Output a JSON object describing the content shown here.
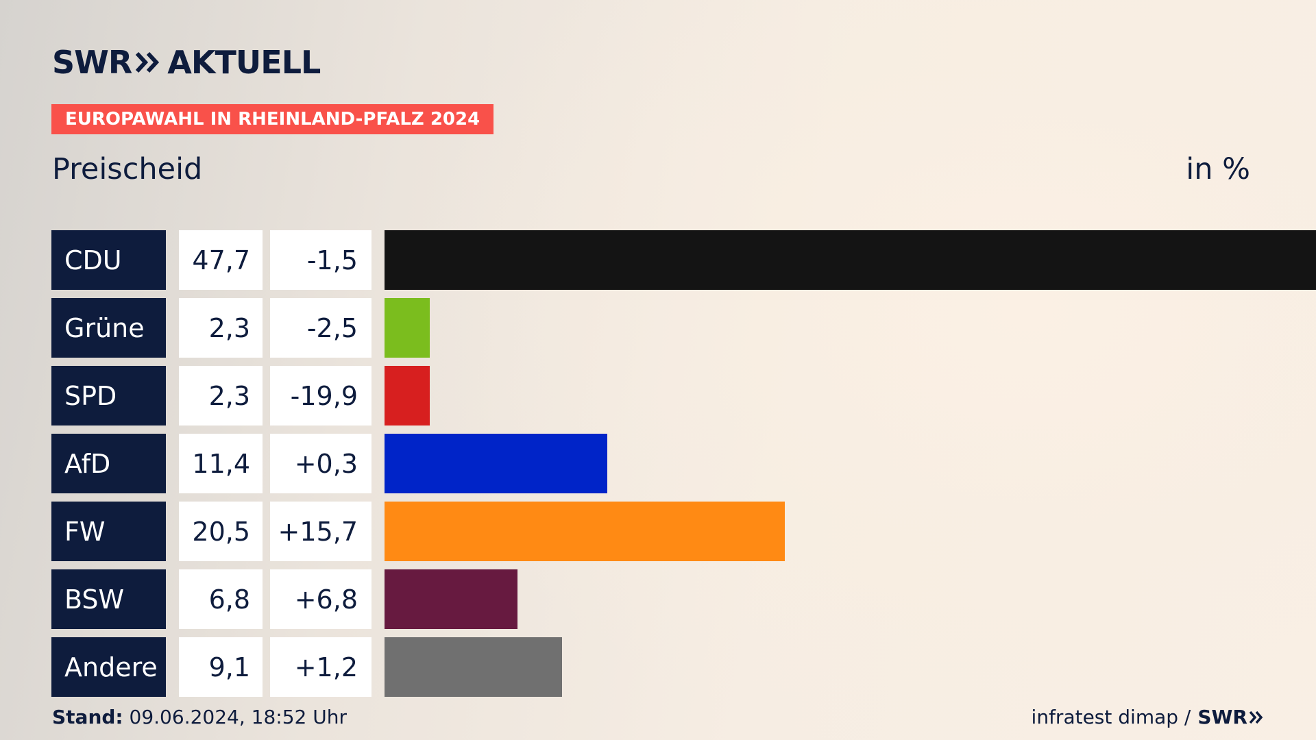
{
  "header": {
    "brand_left": "SWR",
    "brand_right": "AKTUELL",
    "banner": "EUROPAWAHL IN RHEINLAND-PFALZ 2024",
    "subtitle": "Preischeid",
    "unit": "in %"
  },
  "chart_data": {
    "type": "bar",
    "orientation": "horizontal",
    "categories": [
      "CDU",
      "Grüne",
      "SPD",
      "AfD",
      "FW",
      "BSW",
      "Andere"
    ],
    "values": [
      47.7,
      2.3,
      2.3,
      11.4,
      20.5,
      6.8,
      9.1
    ],
    "value_labels": [
      "47,7",
      "2,3",
      "2,3",
      "11,4",
      "20,5",
      "6,8",
      "9,1"
    ],
    "diff_labels": [
      "-1,5",
      "-2,5",
      "-19,9",
      "+0,3",
      "+15,7",
      "+6,8",
      "+1,2"
    ],
    "diffs": [
      -1.5,
      -2.5,
      -19.9,
      0.3,
      15.7,
      6.8,
      1.2
    ],
    "colors": [
      "#141414",
      "#7bbd1e",
      "#d71f1f",
      "#0024c8",
      "#ff8a14",
      "#671a40",
      "#707070"
    ],
    "xlim": [
      0,
      47.7
    ]
  },
  "footer": {
    "stand_label": "Stand:",
    "stand_value": "09.06.2024, 18:52 Uhr",
    "source": "infratest dimap /",
    "source_brand": "SWR"
  },
  "colors": {
    "navy": "#0e1c3d",
    "banner": "#f9514a"
  }
}
